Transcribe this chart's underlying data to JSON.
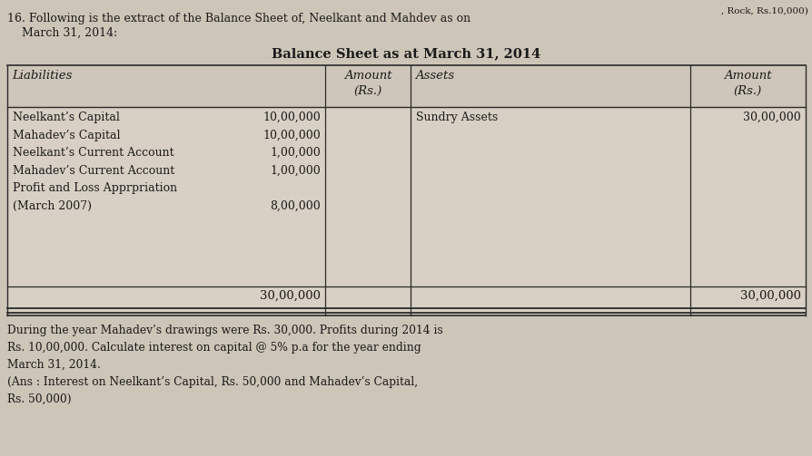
{
  "bg_color": "#cdc5b8",
  "header_text_line1": "16. Following is the extract of the Balance Sheet of, Neelkant and Mahdev as on",
  "header_text_line2": "    March 31, 2014:",
  "table_title": "Balance Sheet as at March 31, 2014",
  "liabilities_items": [
    [
      "Neelkant’s Capital",
      "10,00,000"
    ],
    [
      "Mahadev’s Capital",
      "10,00,000"
    ],
    [
      "Neelkant’s Current Account",
      "1,00,000"
    ],
    [
      "Mahadev’s Current Account",
      "1,00,000"
    ],
    [
      "Profit and Loss Apprpriation",
      ""
    ],
    [
      "(March 2007)",
      "8,00,000"
    ]
  ],
  "assets_items": [
    [
      "Sundry Assets",
      "30,00,000"
    ]
  ],
  "liabilities_total": "30,00,000",
  "assets_total": "30,00,000",
  "footer_line1": "During the year Mahadev’s drawings were Rs. 30,000. Profits during 2014 is",
  "footer_line2": "Rs. 10,00,000. Calculate interest on capital @ 5% p.a for the year ending",
  "footer_line3": "March 31, 2014.",
  "footer_line4": "(Ans : Interest on Neelkant’s Capital, Rs. 50,000 and Mahadev’s Capital,",
  "footer_line5": "Rs. 50,000)",
  "top_text": ", Rock, Rs.10,000)",
  "text_color": "#1a1a1a",
  "table_bg": "#d8d0c4",
  "line_color": "#2a2a2a",
  "header_italic_color": "#1a1a1a"
}
